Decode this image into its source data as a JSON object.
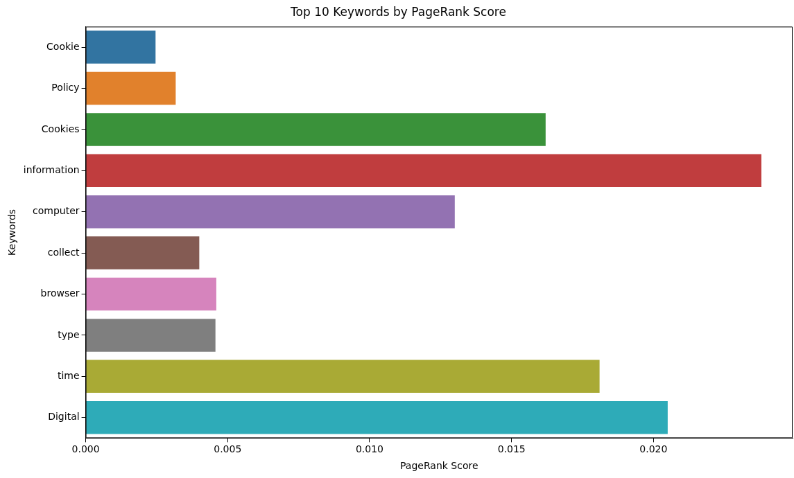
{
  "chart_data": {
    "type": "bar",
    "orientation": "horizontal",
    "title": "Top 10 Keywords by PageRank Score",
    "xlabel": "PageRank Score",
    "ylabel": "Keywords",
    "categories": [
      "Cookie",
      "Policy",
      "Cookies",
      "information",
      "computer",
      "collect",
      "browser",
      "type",
      "time",
      "Digital"
    ],
    "values": [
      0.00246,
      0.00317,
      0.0162,
      0.0238,
      0.013,
      0.004,
      0.0046,
      0.00457,
      0.0181,
      0.0205
    ],
    "colors": [
      "#3274a1",
      "#e1812c",
      "#3a923a",
      "#c03d3e",
      "#9372b2",
      "#845b53",
      "#d684bd",
      "#7f7f7f",
      "#a9aa35",
      "#2eabb8"
    ],
    "xlim": [
      0,
      0.0249
    ],
    "xticks": [
      {
        "value": 0,
        "label": "0.000"
      },
      {
        "value": 0.005,
        "label": "0.005"
      },
      {
        "value": 0.01,
        "label": "0.010"
      },
      {
        "value": 0.015,
        "label": "0.015"
      },
      {
        "value": 0.02,
        "label": "0.020"
      }
    ],
    "grid": false,
    "legend": false
  }
}
